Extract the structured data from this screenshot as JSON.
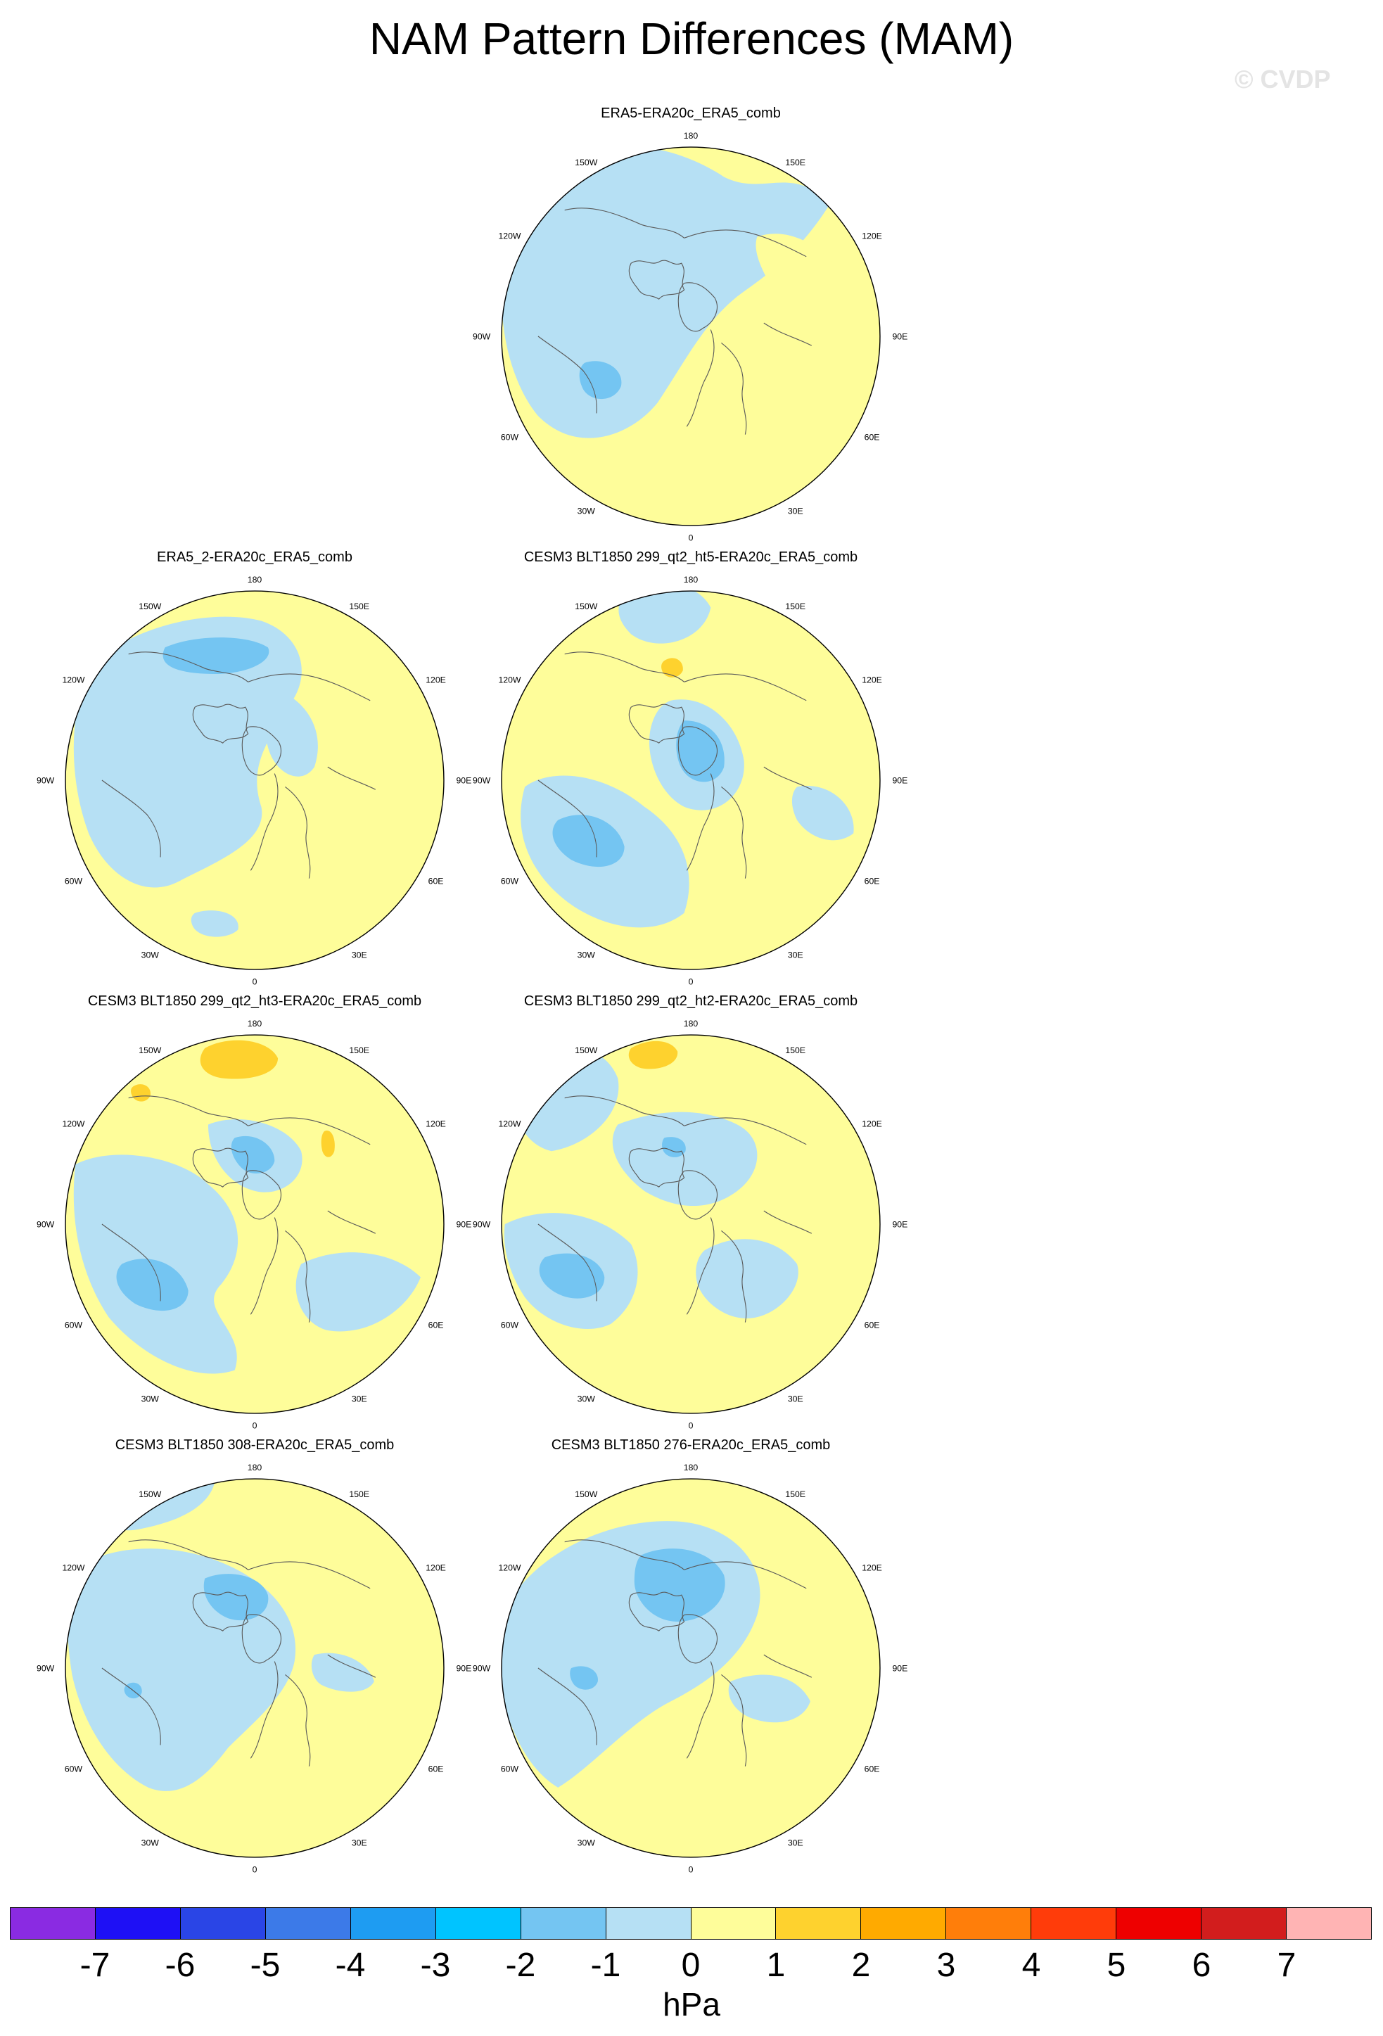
{
  "title": "NAM Pattern Differences (MAM)",
  "watermark": "© CVDP",
  "colors": {
    "neg1": "#b6e0f4",
    "neg2": "#74c5f2",
    "pos1": "#fefd9a",
    "pos2": "#fed22e",
    "coast": "#5a5a5a"
  },
  "lon_labels": [
    "180",
    "150E",
    "120E",
    "90E",
    "60E",
    "30E",
    "0",
    "30W",
    "60W",
    "90W",
    "120W",
    "150W"
  ],
  "panels": [
    {
      "title": "ERA5-ERA20c_ERA5_comb"
    },
    {
      "title": "ERA5_2-ERA20c_ERA5_comb"
    },
    {
      "title": "CESM3 BLT1850 299_qt2_ht5-ERA20c_ERA5_comb"
    },
    {
      "title": "CESM3 BLT1850 299_qt2_ht3-ERA20c_ERA5_comb"
    },
    {
      "title": "CESM3 BLT1850 299_qt2_ht2-ERA20c_ERA5_comb"
    },
    {
      "title": "CESM3 BLT1850 308-ERA20c_ERA5_comb"
    },
    {
      "title": "CESM3 BLT1850 276-ERA20c_ERA5_comb"
    }
  ],
  "colorbar": {
    "colors": [
      "#8a2be2",
      "#1e10f5",
      "#2a45e6",
      "#3c7ae8",
      "#1e9cf2",
      "#00c4ff",
      "#74c5f2",
      "#b6e0f4",
      "#fefd9a",
      "#fed22e",
      "#ffaa00",
      "#ff7e0a",
      "#ff3c0a",
      "#ee0000",
      "#d21d1d",
      "#ffb4b4"
    ],
    "labels": [
      "-7",
      "-6",
      "-5",
      "-4",
      "-3",
      "-2",
      "-1",
      "0",
      "1",
      "2",
      "3",
      "4",
      "5",
      "6",
      "7"
    ],
    "unit": "hPa"
  }
}
